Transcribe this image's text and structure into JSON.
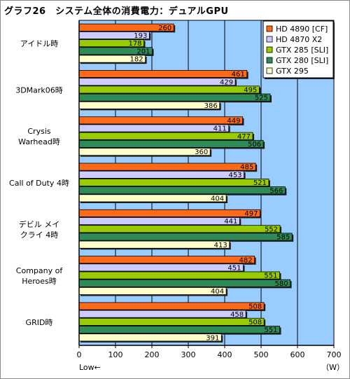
{
  "title": "グラフ26　システム全体の消費電力：デュアルGPU",
  "chart_data": {
    "type": "bar",
    "orientation": "horizontal",
    "title": "グラフ26　システム全体の消費電力：デュアルGPU",
    "categories": [
      [
        "アイドル時"
      ],
      [
        "3DMark06時"
      ],
      [
        "Crysis",
        "Warhead時"
      ],
      [
        "Call of Duty 4時"
      ],
      [
        "デビル メイ",
        "クライ 4時"
      ],
      [
        "Company of",
        "Heroes時"
      ],
      [
        "GRID時"
      ]
    ],
    "series": [
      {
        "name": "HD 4890 [CF]",
        "color": "#ff6a1a",
        "values": [
          260,
          461,
          449,
          485,
          497,
          482,
          508
        ]
      },
      {
        "name": "HD 4870 X2",
        "color": "#ccccff",
        "values": [
          193,
          429,
          411,
          453,
          441,
          451,
          458
        ]
      },
      {
        "name": "GTX 285 [SLI]",
        "color": "#99cc00",
        "values": [
          178,
          495,
          477,
          521,
          552,
          551,
          508
        ]
      },
      {
        "name": "GTX 280 [SLI]",
        "color": "#2e8b57",
        "values": [
          201,
          525,
          506,
          566,
          585,
          580,
          551
        ]
      },
      {
        "name": "GTX 295",
        "color": "#ffffcc",
        "values": [
          182,
          386,
          360,
          404,
          413,
          404,
          391
        ]
      }
    ],
    "xlim": [
      0,
      700
    ],
    "xticks": [
      0,
      100,
      200,
      300,
      400,
      500,
      600,
      700
    ],
    "xlabel_left": "Low←",
    "unit": "（W）",
    "plot_background": "#99ccff",
    "legend_position": "top-right"
  }
}
